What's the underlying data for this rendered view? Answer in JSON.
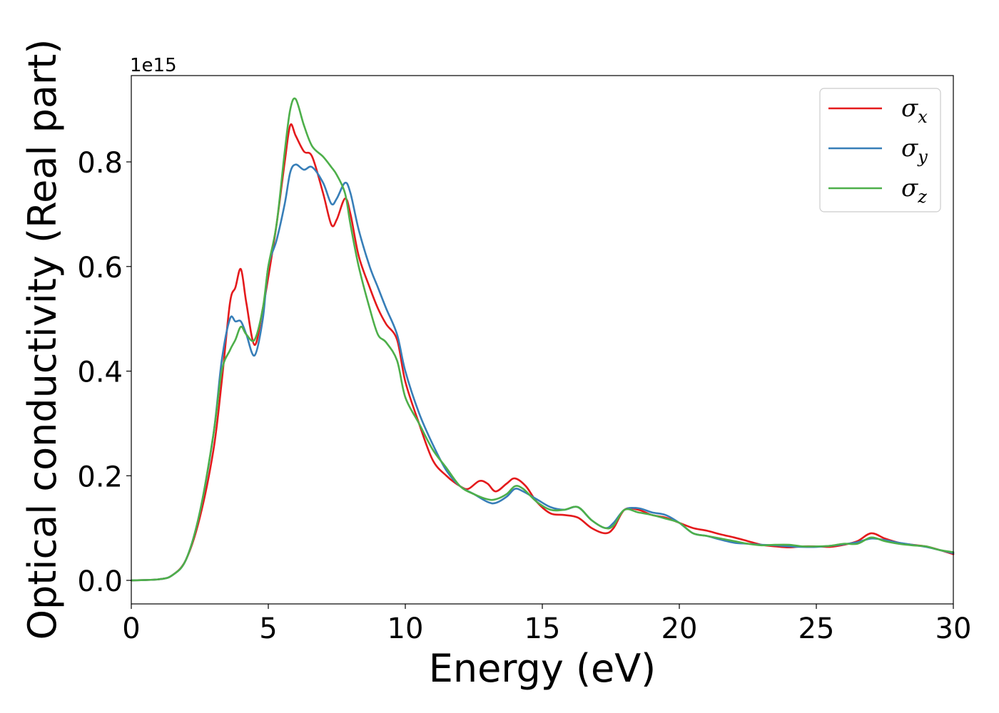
{
  "chart_data": {
    "type": "line",
    "title": "",
    "xlabel": "Energy (eV)",
    "ylabel": "Optical conductivity (Real part)",
    "y_offset_text": "1e15",
    "xlim": [
      0,
      30
    ],
    "ylim": [
      -0.045,
      0.965
    ],
    "x_ticks": [
      0,
      5,
      10,
      15,
      20,
      25,
      30
    ],
    "x_tick_labels": [
      "0",
      "5",
      "10",
      "15",
      "20",
      "25",
      "30"
    ],
    "y_ticks": [
      0.0,
      0.2,
      0.4,
      0.6,
      0.8
    ],
    "y_tick_labels": [
      "0.0",
      "0.2",
      "0.4",
      "0.6",
      "0.8"
    ],
    "grid": false,
    "legend_position": "top-right",
    "series": [
      {
        "name": "σx",
        "legend_symbol": "σ",
        "legend_sub": "x",
        "color": "#e41a1c",
        "points": [
          [
            0,
            0.0
          ],
          [
            1.0,
            0.002
          ],
          [
            1.5,
            0.01
          ],
          [
            2.0,
            0.04
          ],
          [
            2.5,
            0.12
          ],
          [
            3.0,
            0.25
          ],
          [
            3.3,
            0.38
          ],
          [
            3.6,
            0.53
          ],
          [
            3.8,
            0.56
          ],
          [
            4.0,
            0.595
          ],
          [
            4.2,
            0.53
          ],
          [
            4.5,
            0.45
          ],
          [
            4.8,
            0.52
          ],
          [
            5.0,
            0.58
          ],
          [
            5.3,
            0.68
          ],
          [
            5.6,
            0.8
          ],
          [
            5.8,
            0.87
          ],
          [
            6.0,
            0.85
          ],
          [
            6.3,
            0.82
          ],
          [
            6.6,
            0.81
          ],
          [
            7.0,
            0.74
          ],
          [
            7.3,
            0.68
          ],
          [
            7.5,
            0.69
          ],
          [
            7.8,
            0.73
          ],
          [
            8.0,
            0.7
          ],
          [
            8.3,
            0.62
          ],
          [
            8.7,
            0.56
          ],
          [
            9.0,
            0.52
          ],
          [
            9.3,
            0.49
          ],
          [
            9.7,
            0.46
          ],
          [
            10.0,
            0.38
          ],
          [
            10.5,
            0.3
          ],
          [
            11.0,
            0.23
          ],
          [
            11.5,
            0.2
          ],
          [
            12.0,
            0.18
          ],
          [
            12.3,
            0.175
          ],
          [
            12.7,
            0.19
          ],
          [
            13.0,
            0.185
          ],
          [
            13.3,
            0.17
          ],
          [
            13.7,
            0.185
          ],
          [
            14.0,
            0.195
          ],
          [
            14.4,
            0.18
          ],
          [
            14.8,
            0.15
          ],
          [
            15.3,
            0.128
          ],
          [
            15.8,
            0.125
          ],
          [
            16.3,
            0.12
          ],
          [
            16.8,
            0.1
          ],
          [
            17.3,
            0.09
          ],
          [
            17.6,
            0.1
          ],
          [
            18.0,
            0.135
          ],
          [
            18.5,
            0.135
          ],
          [
            19.0,
            0.125
          ],
          [
            19.5,
            0.12
          ],
          [
            20.0,
            0.11
          ],
          [
            20.5,
            0.1
          ],
          [
            21.0,
            0.095
          ],
          [
            21.5,
            0.088
          ],
          [
            22.0,
            0.082
          ],
          [
            22.5,
            0.075
          ],
          [
            23.0,
            0.068
          ],
          [
            23.5,
            0.065
          ],
          [
            24.0,
            0.063
          ],
          [
            24.5,
            0.065
          ],
          [
            25.0,
            0.065
          ],
          [
            25.5,
            0.064
          ],
          [
            26.0,
            0.068
          ],
          [
            26.5,
            0.075
          ],
          [
            27.0,
            0.09
          ],
          [
            27.5,
            0.08
          ],
          [
            28.0,
            0.072
          ],
          [
            28.5,
            0.068
          ],
          [
            29.0,
            0.065
          ],
          [
            29.5,
            0.058
          ],
          [
            30.0,
            0.05
          ]
        ]
      },
      {
        "name": "σy",
        "legend_symbol": "σ",
        "legend_sub": "y",
        "color": "#377eb8",
        "points": [
          [
            0,
            0.0
          ],
          [
            1.0,
            0.002
          ],
          [
            1.5,
            0.01
          ],
          [
            2.0,
            0.04
          ],
          [
            2.5,
            0.13
          ],
          [
            3.0,
            0.28
          ],
          [
            3.3,
            0.42
          ],
          [
            3.6,
            0.5
          ],
          [
            3.8,
            0.495
          ],
          [
            4.0,
            0.495
          ],
          [
            4.2,
            0.47
          ],
          [
            4.5,
            0.43
          ],
          [
            4.8,
            0.5
          ],
          [
            5.0,
            0.6
          ],
          [
            5.3,
            0.65
          ],
          [
            5.6,
            0.72
          ],
          [
            5.8,
            0.78
          ],
          [
            6.0,
            0.795
          ],
          [
            6.3,
            0.785
          ],
          [
            6.6,
            0.79
          ],
          [
            7.0,
            0.76
          ],
          [
            7.3,
            0.72
          ],
          [
            7.5,
            0.73
          ],
          [
            7.8,
            0.76
          ],
          [
            8.0,
            0.74
          ],
          [
            8.3,
            0.67
          ],
          [
            8.7,
            0.6
          ],
          [
            9.0,
            0.56
          ],
          [
            9.3,
            0.52
          ],
          [
            9.7,
            0.47
          ],
          [
            10.0,
            0.4
          ],
          [
            10.5,
            0.32
          ],
          [
            11.0,
            0.26
          ],
          [
            11.5,
            0.21
          ],
          [
            12.0,
            0.18
          ],
          [
            12.5,
            0.165
          ],
          [
            13.0,
            0.15
          ],
          [
            13.3,
            0.148
          ],
          [
            13.7,
            0.16
          ],
          [
            14.0,
            0.175
          ],
          [
            14.3,
            0.17
          ],
          [
            14.8,
            0.155
          ],
          [
            15.3,
            0.14
          ],
          [
            15.8,
            0.135
          ],
          [
            16.3,
            0.14
          ],
          [
            16.8,
            0.115
          ],
          [
            17.3,
            0.1
          ],
          [
            17.6,
            0.11
          ],
          [
            18.0,
            0.135
          ],
          [
            18.5,
            0.138
          ],
          [
            19.0,
            0.13
          ],
          [
            19.5,
            0.125
          ],
          [
            20.0,
            0.11
          ],
          [
            20.5,
            0.09
          ],
          [
            21.0,
            0.085
          ],
          [
            21.5,
            0.078
          ],
          [
            22.0,
            0.072
          ],
          [
            22.5,
            0.07
          ],
          [
            23.0,
            0.068
          ],
          [
            23.5,
            0.067
          ],
          [
            24.0,
            0.065
          ],
          [
            24.5,
            0.064
          ],
          [
            25.0,
            0.064
          ],
          [
            25.5,
            0.066
          ],
          [
            26.0,
            0.069
          ],
          [
            26.5,
            0.073
          ],
          [
            27.0,
            0.08
          ],
          [
            27.5,
            0.077
          ],
          [
            28.0,
            0.072
          ],
          [
            28.5,
            0.068
          ],
          [
            29.0,
            0.064
          ],
          [
            29.5,
            0.058
          ],
          [
            30.0,
            0.052
          ]
        ]
      },
      {
        "name": "σz",
        "legend_symbol": "σ",
        "legend_sub": "z",
        "color": "#4daf4a",
        "points": [
          [
            0,
            0.0
          ],
          [
            1.0,
            0.002
          ],
          [
            1.5,
            0.01
          ],
          [
            2.0,
            0.04
          ],
          [
            2.5,
            0.13
          ],
          [
            3.0,
            0.28
          ],
          [
            3.3,
            0.4
          ],
          [
            3.6,
            0.44
          ],
          [
            3.8,
            0.46
          ],
          [
            4.0,
            0.485
          ],
          [
            4.2,
            0.47
          ],
          [
            4.5,
            0.46
          ],
          [
            4.8,
            0.52
          ],
          [
            5.0,
            0.6
          ],
          [
            5.3,
            0.68
          ],
          [
            5.6,
            0.82
          ],
          [
            5.8,
            0.9
          ],
          [
            6.0,
            0.92
          ],
          [
            6.3,
            0.87
          ],
          [
            6.6,
            0.83
          ],
          [
            7.0,
            0.81
          ],
          [
            7.3,
            0.79
          ],
          [
            7.5,
            0.775
          ],
          [
            7.8,
            0.74
          ],
          [
            8.0,
            0.68
          ],
          [
            8.3,
            0.6
          ],
          [
            8.7,
            0.52
          ],
          [
            9.0,
            0.47
          ],
          [
            9.3,
            0.455
          ],
          [
            9.7,
            0.42
          ],
          [
            10.0,
            0.35
          ],
          [
            10.5,
            0.3
          ],
          [
            11.0,
            0.25
          ],
          [
            11.5,
            0.215
          ],
          [
            12.0,
            0.18
          ],
          [
            12.5,
            0.165
          ],
          [
            13.0,
            0.155
          ],
          [
            13.3,
            0.155
          ],
          [
            13.7,
            0.165
          ],
          [
            14.0,
            0.18
          ],
          [
            14.3,
            0.175
          ],
          [
            14.8,
            0.15
          ],
          [
            15.3,
            0.135
          ],
          [
            15.8,
            0.135
          ],
          [
            16.3,
            0.14
          ],
          [
            16.8,
            0.115
          ],
          [
            17.3,
            0.1
          ],
          [
            17.6,
            0.105
          ],
          [
            18.0,
            0.135
          ],
          [
            18.5,
            0.13
          ],
          [
            19.0,
            0.125
          ],
          [
            19.5,
            0.118
          ],
          [
            20.0,
            0.11
          ],
          [
            20.5,
            0.09
          ],
          [
            21.0,
            0.085
          ],
          [
            21.5,
            0.08
          ],
          [
            22.0,
            0.075
          ],
          [
            22.5,
            0.07
          ],
          [
            23.0,
            0.067
          ],
          [
            23.5,
            0.068
          ],
          [
            24.0,
            0.068
          ],
          [
            24.5,
            0.065
          ],
          [
            25.0,
            0.065
          ],
          [
            25.5,
            0.066
          ],
          [
            26.0,
            0.07
          ],
          [
            26.5,
            0.07
          ],
          [
            27.0,
            0.082
          ],
          [
            27.5,
            0.075
          ],
          [
            28.0,
            0.07
          ],
          [
            28.5,
            0.067
          ],
          [
            29.0,
            0.065
          ],
          [
            29.5,
            0.058
          ],
          [
            30.0,
            0.054
          ]
        ]
      }
    ]
  }
}
